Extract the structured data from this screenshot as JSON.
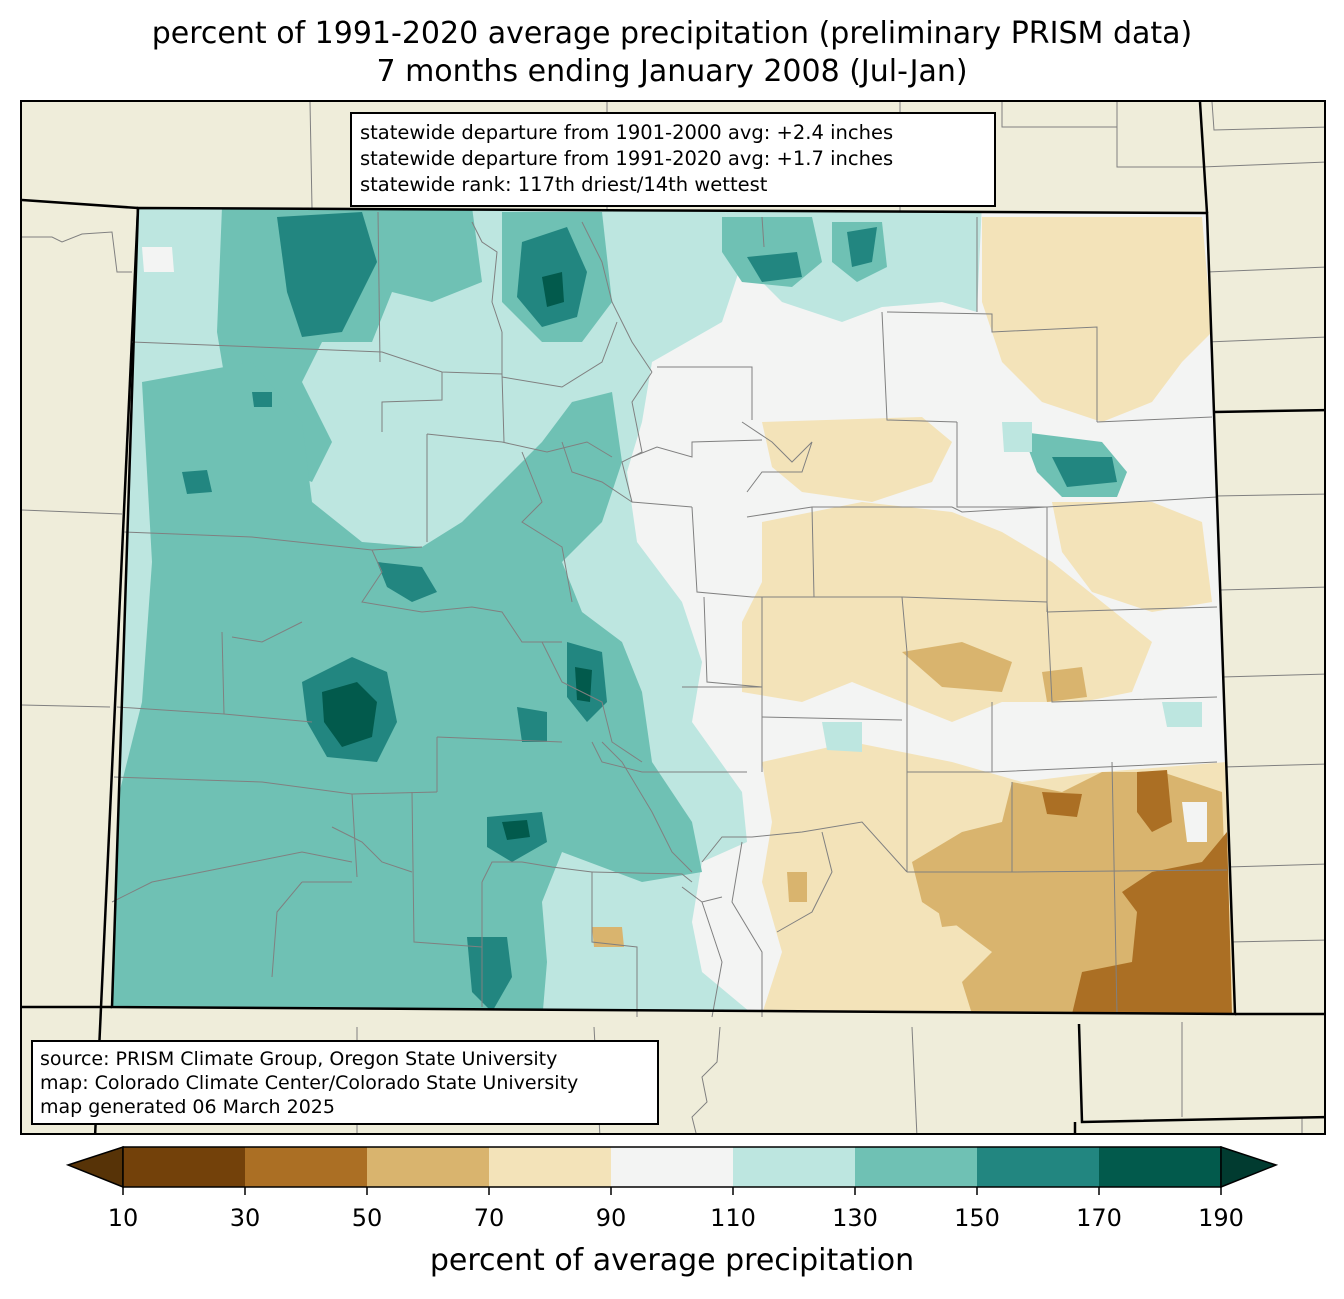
{
  "title": {
    "line1": "percent of 1991-2020 average precipitation (preliminary PRISM data)",
    "line2": "7 months ending January 2008 (Jul-Jan)"
  },
  "stats": {
    "line1": "statewide departure from 1901-2000 avg: +2.4 inches",
    "line2": "statewide departure from 1991-2020 avg: +1.7 inches",
    "line3": "statewide rank: 117th driest/14th wettest"
  },
  "credits": {
    "line1": "source: PRISM Climate Group, Oregon State University",
    "line2": "map: Colorado Climate Center/Colorado State University",
    "line3": "map generated 06 March 2025"
  },
  "colorbar": {
    "label": "percent of average precipitation",
    "ticks": [
      "10",
      "30",
      "50",
      "70",
      "90",
      "110",
      "130",
      "150",
      "170",
      "190"
    ],
    "bins": [
      {
        "range": "10-30",
        "color": "#73410a"
      },
      {
        "range": "30-50",
        "color": "#ab6f24"
      },
      {
        "range": "50-70",
        "color": "#d9b46e"
      },
      {
        "range": "70-90",
        "color": "#f3e3b9"
      },
      {
        "range": "90-110",
        "color": "#f3f4f3"
      },
      {
        "range": "110-130",
        "color": "#bde6e0"
      },
      {
        "range": "130-150",
        "color": "#6fc1b4"
      },
      {
        "range": "150-170",
        "color": "#228680"
      },
      {
        "range": "170-190",
        "color": "#025a4c"
      }
    ],
    "under_color": "#573307",
    "over_color": "#013b30"
  },
  "colors": {
    "background": "#efedda",
    "state_border": "#000000",
    "county_border": "#808080"
  }
}
